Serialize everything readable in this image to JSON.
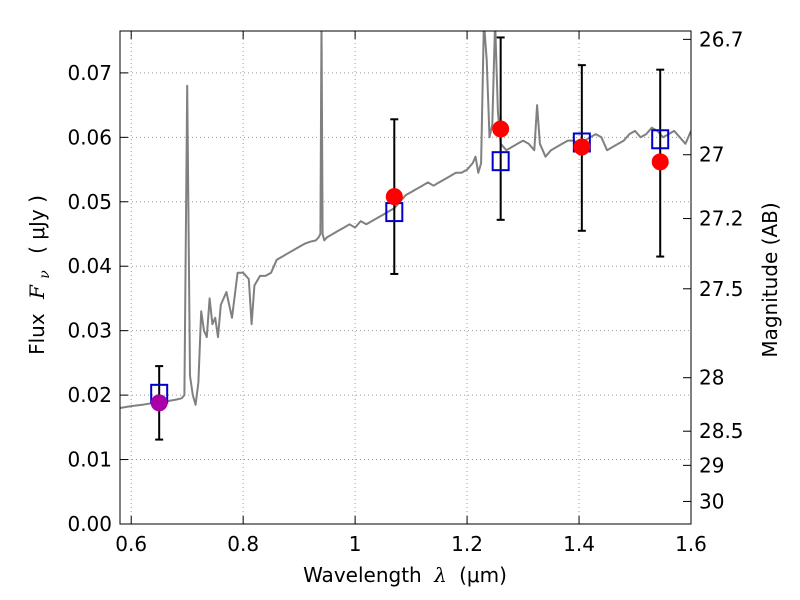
{
  "chart_data": {
    "type": "scatter",
    "title": "",
    "xlabel": {
      "prefix": "Wavelength",
      "symbol": "λ",
      "unit": "(μm)"
    },
    "ylabel": {
      "prefix": "Flux",
      "symbol": "F",
      "subscript": "ν",
      "unit": "( μJy )"
    },
    "y2label": "Magnitude (AB)",
    "xlim": [
      0.58,
      1.6
    ],
    "ylim": [
      0.0,
      0.0765
    ],
    "grid": true,
    "grid_style": "dotted",
    "xticks": [
      {
        "value": 0.6,
        "label": "0.6"
      },
      {
        "value": 0.8,
        "label": "0.8"
      },
      {
        "value": 1.0,
        "label": "1"
      },
      {
        "value": 1.2,
        "label": "1.2"
      },
      {
        "value": 1.4,
        "label": "1.4"
      },
      {
        "value": 1.6,
        "label": "1.6"
      }
    ],
    "yticks": [
      {
        "value": 0.0,
        "label": "0.00"
      },
      {
        "value": 0.01,
        "label": "0.01"
      },
      {
        "value": 0.02,
        "label": "0.02"
      },
      {
        "value": 0.03,
        "label": "0.03"
      },
      {
        "value": 0.04,
        "label": "0.04"
      },
      {
        "value": 0.05,
        "label": "0.05"
      },
      {
        "value": 0.06,
        "label": "0.06"
      },
      {
        "value": 0.07,
        "label": "0.07"
      }
    ],
    "y2ticks": [
      {
        "flux": 0.0752,
        "label": "26.7"
      },
      {
        "flux": 0.0573,
        "label": "27"
      },
      {
        "flux": 0.0474,
        "label": "27.2"
      },
      {
        "flux": 0.0365,
        "label": "27.5"
      },
      {
        "flux": 0.0227,
        "label": "28"
      },
      {
        "flux": 0.0144,
        "label": "28.5"
      },
      {
        "flux": 0.0091,
        "label": "29"
      },
      {
        "flux": 0.0035,
        "label": "30"
      }
    ],
    "colors": {
      "spectrum": "#808080",
      "model": "#0000cc",
      "observed": "#ff0000",
      "first_obs": "#aa00aa",
      "errorbar": "#000000",
      "grid": "#9a9a9a"
    },
    "spectrum": {
      "name": "model spectrum",
      "x": [
        0.58,
        0.6,
        0.62,
        0.64,
        0.66,
        0.68,
        0.69,
        0.695,
        0.7,
        0.705,
        0.71,
        0.715,
        0.72,
        0.725,
        0.73,
        0.735,
        0.74,
        0.745,
        0.75,
        0.755,
        0.76,
        0.77,
        0.78,
        0.79,
        0.8,
        0.81,
        0.815,
        0.82,
        0.83,
        0.84,
        0.85,
        0.86,
        0.87,
        0.88,
        0.89,
        0.9,
        0.91,
        0.92,
        0.93,
        0.935,
        0.938,
        0.94,
        0.942,
        0.945,
        0.95,
        0.96,
        0.97,
        0.98,
        0.99,
        1.0,
        1.01,
        1.02,
        1.03,
        1.04,
        1.05,
        1.06,
        1.07,
        1.08,
        1.09,
        1.1,
        1.11,
        1.12,
        1.13,
        1.14,
        1.15,
        1.16,
        1.17,
        1.18,
        1.19,
        1.2,
        1.21,
        1.215,
        1.22,
        1.225,
        1.23,
        1.235,
        1.24,
        1.245,
        1.25,
        1.255,
        1.26,
        1.27,
        1.28,
        1.29,
        1.3,
        1.31,
        1.32,
        1.325,
        1.33,
        1.335,
        1.34,
        1.35,
        1.36,
        1.37,
        1.38,
        1.39,
        1.4,
        1.41,
        1.42,
        1.43,
        1.44,
        1.45,
        1.46,
        1.47,
        1.48,
        1.49,
        1.5,
        1.51,
        1.52,
        1.53,
        1.54,
        1.55,
        1.56,
        1.57,
        1.58,
        1.59,
        1.6
      ],
      "y": [
        0.018,
        0.0183,
        0.0185,
        0.0188,
        0.019,
        0.0193,
        0.0195,
        0.02,
        0.068,
        0.023,
        0.02,
        0.0185,
        0.022,
        0.033,
        0.03,
        0.029,
        0.035,
        0.031,
        0.032,
        0.029,
        0.034,
        0.036,
        0.032,
        0.039,
        0.039,
        0.038,
        0.031,
        0.037,
        0.0385,
        0.0385,
        0.039,
        0.041,
        0.0415,
        0.042,
        0.0425,
        0.043,
        0.0435,
        0.0438,
        0.044,
        0.0445,
        0.045,
        0.078,
        0.045,
        0.044,
        0.0445,
        0.045,
        0.0455,
        0.046,
        0.0465,
        0.046,
        0.047,
        0.0465,
        0.047,
        0.0475,
        0.048,
        0.0485,
        0.049,
        0.05,
        0.051,
        0.0515,
        0.052,
        0.0525,
        0.053,
        0.0525,
        0.053,
        0.0535,
        0.054,
        0.0545,
        0.0545,
        0.055,
        0.056,
        0.057,
        0.0545,
        0.056,
        0.078,
        0.072,
        0.06,
        0.062,
        0.078,
        0.064,
        0.059,
        0.058,
        0.0585,
        0.059,
        0.0595,
        0.059,
        0.058,
        0.065,
        0.059,
        0.058,
        0.057,
        0.058,
        0.0585,
        0.059,
        0.0595,
        0.0595,
        0.059,
        0.0595,
        0.06,
        0.0605,
        0.06,
        0.058,
        0.0585,
        0.059,
        0.0595,
        0.0605,
        0.061,
        0.06,
        0.0605,
        0.0615,
        0.061,
        0.06,
        0.0605,
        0.061,
        0.06,
        0.059,
        0.061
      ]
    },
    "series": [
      {
        "name": "model",
        "marker": "square",
        "x": [
          0.65,
          1.07,
          1.26,
          1.405,
          1.545
        ],
        "y": [
          0.0202,
          0.0484,
          0.0563,
          0.0592,
          0.0597
        ]
      },
      {
        "name": "observed",
        "marker": "circle",
        "x": [
          0.65,
          1.07,
          1.26,
          1.405,
          1.545
        ],
        "y": [
          0.0188,
          0.0508,
          0.0613,
          0.0585,
          0.0562
        ],
        "err_low": [
          0.0131,
          0.0388,
          0.0472,
          0.0455,
          0.0415
        ],
        "err_high": [
          0.0245,
          0.0628,
          0.0755,
          0.0712,
          0.0705
        ]
      }
    ]
  }
}
